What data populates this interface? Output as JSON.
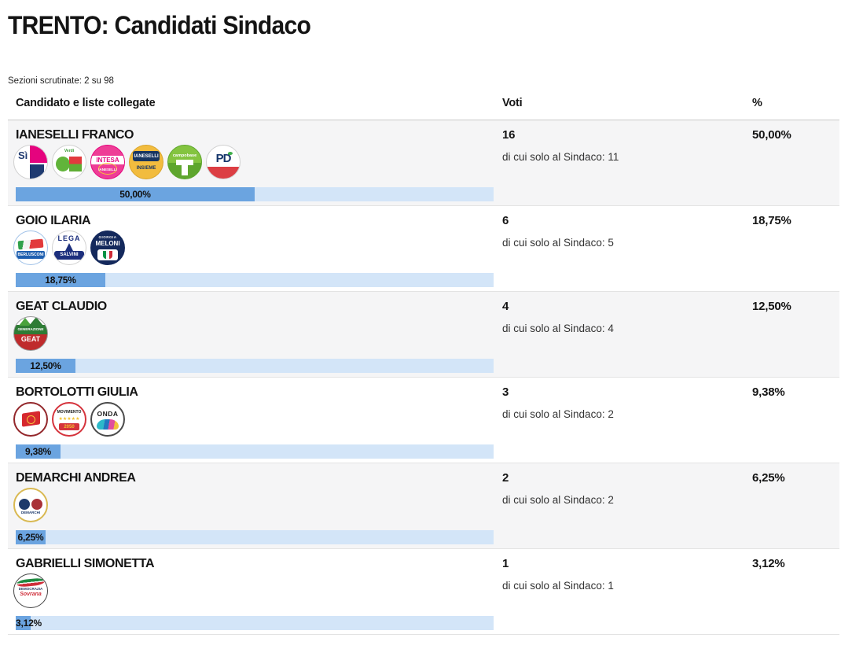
{
  "page": {
    "title": "TRENTO: Candidati Sindaco",
    "sections_note": "Sezioni scrutinate: 2 su 98"
  },
  "table": {
    "headers": {
      "candidate": "Candidato e liste collegate",
      "votes": "Voti",
      "percent": "%"
    },
    "rows": [
      {
        "name": "IANESELLI FRANCO",
        "votes": "16",
        "mayor_only_note": "di cui solo al Sindaco: 11",
        "percent": "50,00%",
        "bar_pct": 50.0,
        "logos": [
          {
            "name": "si-franco-ianeselli",
            "alt": "Sì Franco Ianeselli Sindaco",
            "t1": "Sì",
            "t2": ""
          },
          {
            "name": "europa-verde-sinistra",
            "alt": "Alleanza Verdi e Sinistra",
            "t1": "",
            "t2": "Verdi"
          },
          {
            "name": "intesa-per-ianeselli",
            "alt": "Intesa per Ianeselli Sindaco",
            "t1": "INTESA",
            "t2": "IANESELLI"
          },
          {
            "name": "ianeselli-insieme-per-trento",
            "alt": "Ianeselli Sindaco Insieme per Trento",
            "t1": "IANESELLI",
            "t2": "INSIEME"
          },
          {
            "name": "campobase",
            "alt": "Campobase",
            "t1": "campobase",
            "t2": ""
          },
          {
            "name": "pd-partito-democratico",
            "alt": "Partito Democratico del Trentino",
            "t1": "PD",
            "t2": ""
          }
        ]
      },
      {
        "name": "GOIO ILARIA",
        "votes": "6",
        "mayor_only_note": "di cui solo al Sindaco: 5",
        "percent": "18,75%",
        "bar_pct": 18.75,
        "logos": [
          {
            "name": "forza-italia-berlusconi",
            "alt": "Forza Italia Berlusconi",
            "t1": "BERLUSCONI",
            "t2": ""
          },
          {
            "name": "lega-salvini",
            "alt": "Lega Salvini",
            "t1": "SALVINI",
            "t2": "LEGA"
          },
          {
            "name": "fratelli-ditalia-meloni",
            "alt": "Giorgia Meloni Fratelli d'Italia",
            "t1": "MELONI",
            "t2": "GIORGIA"
          }
        ]
      },
      {
        "name": "GEAT CLAUDIO",
        "votes": "4",
        "mayor_only_note": "di cui solo al Sindaco: 4",
        "percent": "12,50%",
        "bar_pct": 12.5,
        "logos": [
          {
            "name": "generazione-geat",
            "alt": "GenerAzione Geat Sindaco",
            "t1": "GEAT",
            "t2": "GENERAZIONE"
          }
        ]
      },
      {
        "name": "BORTOLOTTI GIULIA",
        "votes": "3",
        "mayor_only_note": "di cui solo al Sindaco: 2",
        "percent": "9,38%",
        "bar_pct": 9.38,
        "logos": [
          {
            "name": "rifondazione-comunista",
            "alt": "Rifondazione Comunista",
            "t1": "",
            "t2": ""
          },
          {
            "name": "movimento-5-stelle-2050",
            "alt": "Movimento 5 Stelle 2050",
            "t1": "2050",
            "t2": "MOVIMENTO"
          },
          {
            "name": "onda",
            "alt": "Onda",
            "t1": "ONDA",
            "t2": ""
          }
        ]
      },
      {
        "name": "DEMARCHI ANDREA",
        "votes": "2",
        "mayor_only_note": "di cui solo al Sindaco: 2",
        "percent": "6,25%",
        "bar_pct": 6.25,
        "logos": [
          {
            "name": "lista-demarchi",
            "alt": "Lista Demarchi Sindaco Trento",
            "t1": "DEMARCHI",
            "t2": ""
          }
        ]
      },
      {
        "name": "GABRIELLI SIMONETTA",
        "votes": "1",
        "mayor_only_note": "di cui solo al Sindaco: 1",
        "percent": "3,12%",
        "bar_pct": 3.12,
        "logos": [
          {
            "name": "democrazia-sovrana-popolare",
            "alt": "Democrazia Sovrana Popolare",
            "t1": "Sovrana",
            "t2": "DEMOCRAZIA"
          }
        ]
      }
    ]
  },
  "colors": {
    "bar_fill": "#6ba4e0",
    "bar_bg": "#d3e5f8",
    "row_alt_bg": "#f5f5f6",
    "divider": "#e3e3e3",
    "header_divider": "#c9c9c9"
  }
}
